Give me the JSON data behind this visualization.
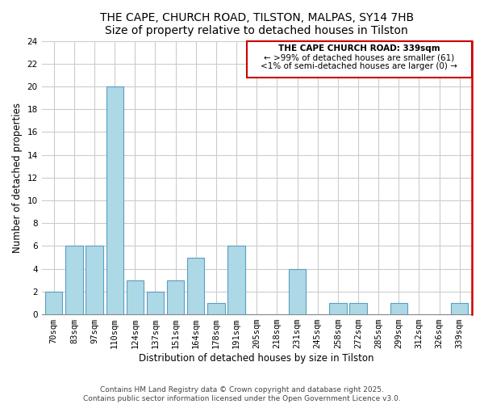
{
  "title": "THE CAPE, CHURCH ROAD, TILSTON, MALPAS, SY14 7HB",
  "subtitle": "Size of property relative to detached houses in Tilston",
  "xlabel": "Distribution of detached houses by size in Tilston",
  "ylabel": "Number of detached properties",
  "categories": [
    "70sqm",
    "83sqm",
    "97sqm",
    "110sqm",
    "124sqm",
    "137sqm",
    "151sqm",
    "164sqm",
    "178sqm",
    "191sqm",
    "205sqm",
    "218sqm",
    "231sqm",
    "245sqm",
    "258sqm",
    "272sqm",
    "285sqm",
    "299sqm",
    "312sqm",
    "326sqm",
    "339sqm"
  ],
  "values": [
    2,
    6,
    6,
    20,
    3,
    2,
    3,
    5,
    1,
    6,
    0,
    0,
    4,
    0,
    1,
    1,
    0,
    1,
    0,
    0,
    1
  ],
  "bar_color": "#add8e6",
  "bar_edge_color": "#5b9fc0",
  "ylim": [
    0,
    24
  ],
  "yticks": [
    0,
    2,
    4,
    6,
    8,
    10,
    12,
    14,
    16,
    18,
    20,
    22,
    24
  ],
  "annotation_box_color": "#cc0000",
  "annotation_text_line1": "THE CAPE CHURCH ROAD: 339sqm",
  "annotation_text_line2": "← >99% of detached houses are smaller (61)",
  "annotation_text_line3": "<1% of semi-detached houses are larger (0) →",
  "footer_line1": "Contains HM Land Registry data © Crown copyright and database right 2025.",
  "footer_line2": "Contains public sector information licensed under the Open Government Licence v3.0.",
  "title_fontsize": 10,
  "subtitle_fontsize": 9,
  "axis_label_fontsize": 8.5,
  "tick_fontsize": 7.5,
  "annotation_fontsize": 7.5,
  "footer_fontsize": 6.5,
  "grid_color": "#cccccc"
}
